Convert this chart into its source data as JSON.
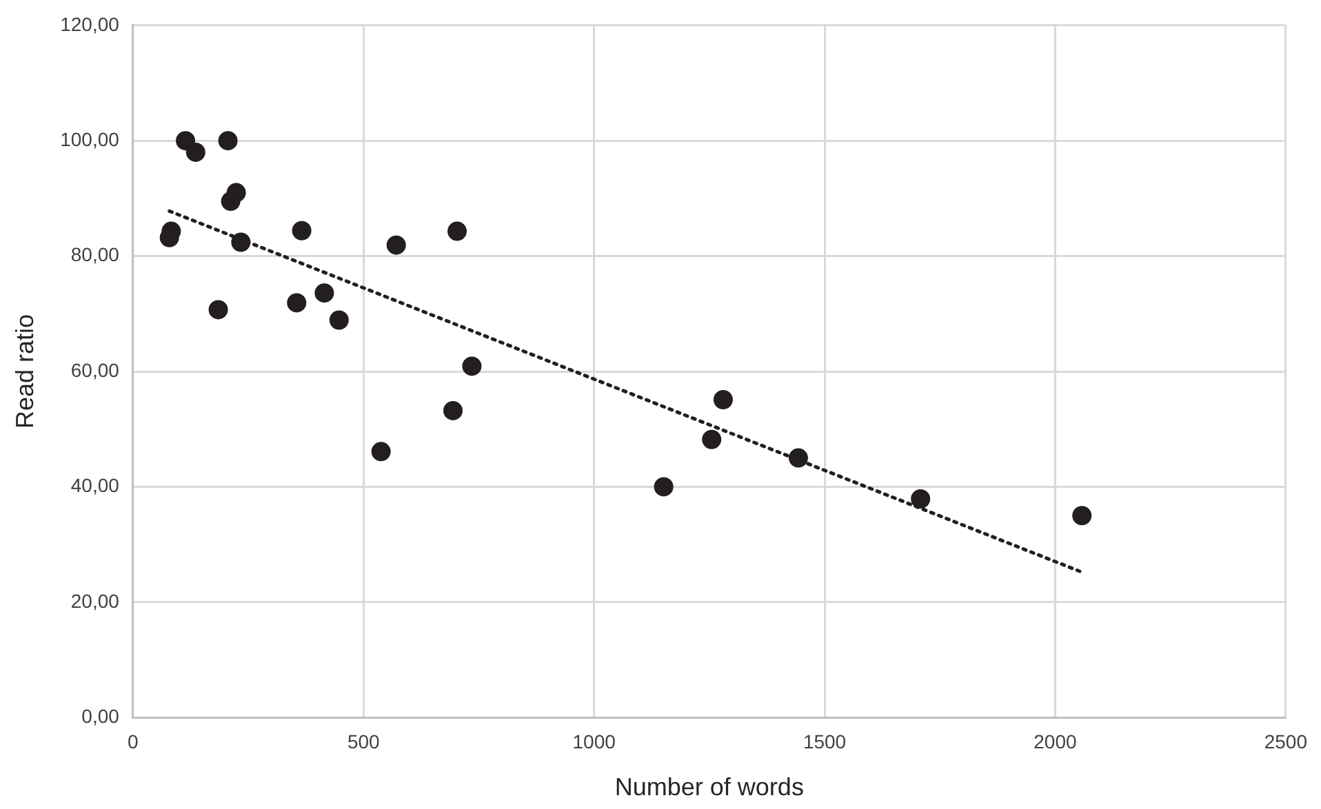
{
  "chart_data": {
    "type": "scatter",
    "xlabel": "Number of words",
    "ylabel": "Read ratio",
    "xlim": [
      0,
      2500
    ],
    "xticks": [
      0,
      500,
      1000,
      1500,
      2000,
      2500
    ],
    "ylim": [
      0,
      120
    ],
    "yticks": [
      {
        "value": 0,
        "label": "0,00"
      },
      {
        "value": 20,
        "label": "20,00"
      },
      {
        "value": 40,
        "label": "40,00"
      },
      {
        "value": 60,
        "label": "60,00"
      },
      {
        "value": 80,
        "label": "80,00"
      },
      {
        "value": 100,
        "label": "100,00"
      },
      {
        "value": 120,
        "label": "120,00"
      }
    ],
    "grid": true,
    "legend": false,
    "series": [
      {
        "color": "#231f20",
        "marker": "circle",
        "x": [
          114,
          136,
          206,
          224,
          212,
          83,
          79,
          234,
          366,
          571,
          703,
          185,
          355,
          415,
          447,
          735,
          1280,
          1255,
          1151,
          1443,
          1708,
          2058,
          538,
          694
        ],
        "values": [
          100,
          98,
          100,
          91,
          89.5,
          84.3,
          83.2,
          82.4,
          84.4,
          81.9,
          84.3,
          70.7,
          71.9,
          73.6,
          68.9,
          60.9,
          55.1,
          48.2,
          40,
          45,
          37.9,
          35,
          46.1,
          53.2
        ]
      },
      {
        "type": "line",
        "color": "#231f20",
        "marker": "none",
        "line_style": "dotted",
        "x": [
          79,
          2058
        ],
        "values": [
          87.8,
          25.2
        ]
      }
    ]
  }
}
